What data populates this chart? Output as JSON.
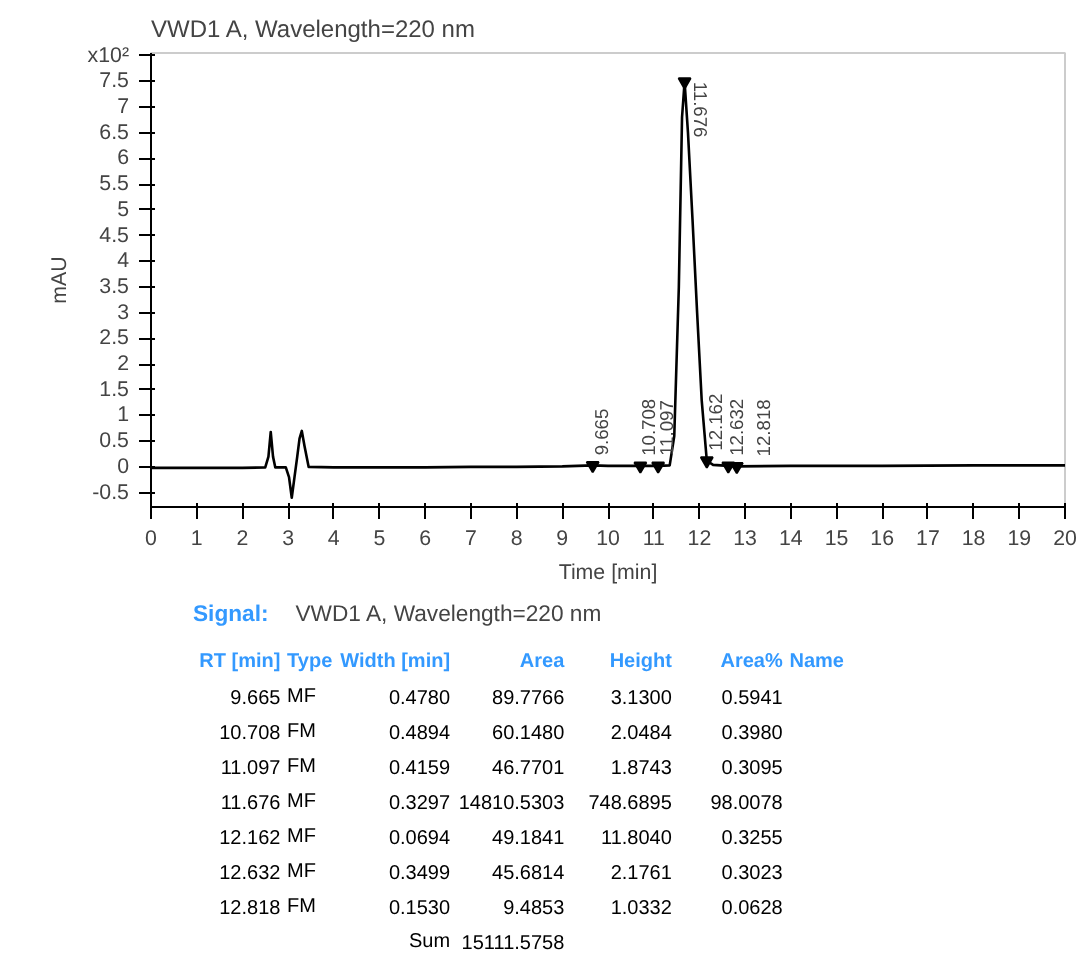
{
  "chart_data": {
    "type": "line",
    "title": "VWD1 A, Wavelength=220 nm",
    "xlabel": "Time [min]",
    "ylabel": "mAU",
    "x": [
      0,
      1,
      2,
      2.5,
      2.57,
      2.62,
      2.67,
      2.72,
      2.95,
      3.02,
      3.08,
      3.14,
      3.2,
      3.25,
      3.3,
      3.36,
      3.45,
      4,
      5,
      6,
      7,
      8,
      9,
      9.665,
      10,
      10.708,
      11.097,
      11.35,
      11.45,
      11.55,
      11.62,
      11.676,
      11.75,
      11.85,
      11.95,
      12.05,
      12.162,
      12.3,
      12.632,
      12.818,
      14,
      16,
      18,
      20
    ],
    "series": [
      {
        "color": "#000000",
        "values": [
          -0.02,
          -0.02,
          -0.02,
          -0.01,
          0.2,
          0.68,
          0.2,
          -0.01,
          -0.01,
          -0.2,
          -0.6,
          -0.2,
          0.2,
          0.55,
          0.7,
          0.4,
          0.0,
          -0.01,
          -0.01,
          -0.01,
          0.0,
          0.0,
          0.01,
          0.03,
          0.02,
          0.02,
          0.02,
          0.03,
          0.6,
          3.5,
          6.8,
          7.49,
          6.5,
          4.8,
          3.0,
          1.3,
          0.12,
          0.04,
          0.02,
          0.01,
          0.02,
          0.02,
          0.03,
          0.03
        ]
      }
    ],
    "xlim": [
      0,
      20
    ],
    "xticks": [
      0,
      1,
      2,
      3,
      4,
      5,
      6,
      7,
      8,
      9,
      10,
      11,
      12,
      13,
      14,
      15,
      16,
      17,
      18,
      19,
      20
    ],
    "ylim": [
      -0.78,
      8.05
    ],
    "yticks": [
      -0.5,
      0,
      0.5,
      1,
      1.5,
      2,
      2.5,
      3,
      3.5,
      4,
      4.5,
      5,
      5.5,
      6,
      6.5,
      7,
      7.5,
      {
        "value": 8,
        "label": "x10²"
      }
    ],
    "grid": false,
    "marker": "none",
    "line_style": "solid",
    "annotations": [
      {
        "text": "9.665",
        "x": 9.665,
        "y": 0.03
      },
      {
        "text": "10.708",
        "x": 10.708,
        "y": 0.02
      },
      {
        "text": "11.097",
        "x": 11.097,
        "y": 0.02
      },
      {
        "text": "11.676",
        "x": 11.676,
        "y": 7.49
      },
      {
        "text": "12.162",
        "x": 12.162,
        "y": 0.12
      },
      {
        "text": "12.632",
        "x": 12.632,
        "y": 0.02
      },
      {
        "text": "12.818",
        "x": 12.818,
        "y": 0.01
      },
      "Signal:\tVWD1 A, Wavelength=220 nm",
      "RT [min]\tType\tWidth [min]\tArea\tHeight\tArea%\tName",
      "9.665\tMF\t0.4780\t89.7766\t3.1300\t0.5941",
      "10.708\tFM\t0.4894\t60.1480\t2.0484\t0.3980",
      "11.097\tFM\t0.4159\t46.7701\t1.8743\t0.3095",
      "11.676\tMF\t0.3297\t14810.5303\t748.6895\t98.0078",
      "12.162\tMF\t0.0694\t49.1841\t11.8040\t0.3255",
      "12.632\tMF\t0.3499\t45.6814\t2.1761\t0.3023",
      "12.818\tFM\t0.1530\t9.4853\t1.0332\t0.0628",
      "\t\tSum\t15111.5758"
    ]
  }
}
